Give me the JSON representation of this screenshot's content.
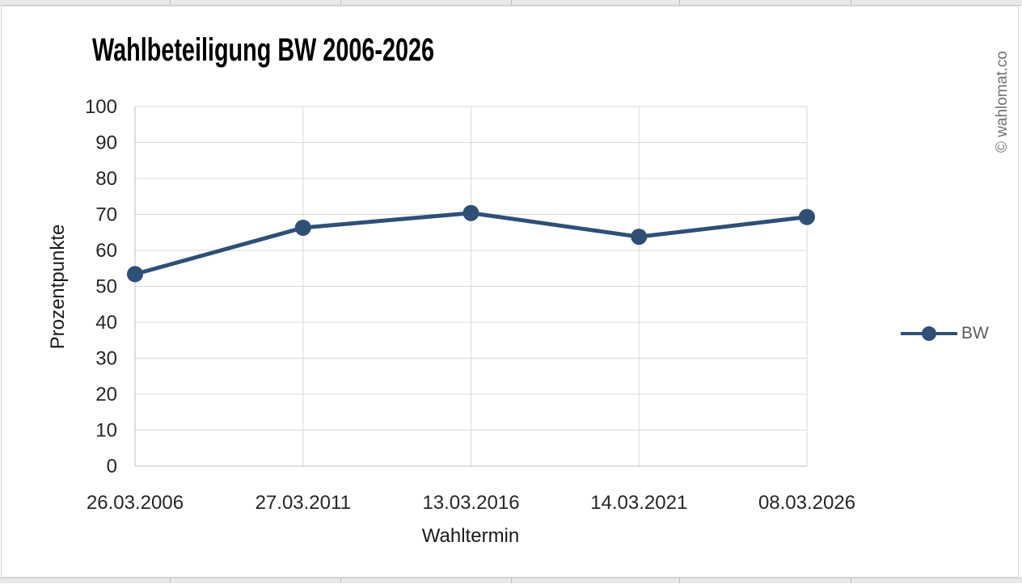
{
  "watermark": "© wahlomat.co",
  "chart_data": {
    "type": "line",
    "title": "Wahlbeteiligung BW 2006-2026",
    "xlabel": "Wahltermin",
    "ylabel": "Prozentpunkte",
    "categories": [
      "26.03.2006",
      "27.03.2011",
      "13.03.2016",
      "14.03.2021",
      "08.03.2026"
    ],
    "series": [
      {
        "name": "BW",
        "values": [
          53.4,
          66.3,
          70.4,
          63.8,
          69.3
        ]
      }
    ],
    "ylim": [
      0,
      100
    ],
    "ytick_step": 10,
    "grid": true,
    "vertical_grid": true,
    "legend_position": "right",
    "marker": "circle",
    "colors": {
      "series": "#2e5077",
      "gridline": "#d9d9d9",
      "axis_line": "#bfbfbf",
      "tick_text": "#262626",
      "title_text": "#000000",
      "legend_text": "#595959",
      "watermark_text": "#717171",
      "strip_bg": "#e9e9e9"
    }
  }
}
